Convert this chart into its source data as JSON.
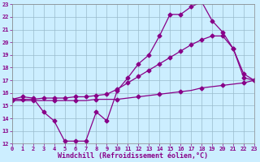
{
  "xlabel": "Windchill (Refroidissement éolien,°C)",
  "xlim": [
    0,
    23
  ],
  "ylim": [
    12,
    23
  ],
  "xticks": [
    0,
    1,
    2,
    3,
    4,
    5,
    6,
    7,
    8,
    9,
    10,
    11,
    12,
    13,
    14,
    15,
    16,
    17,
    18,
    19,
    20,
    21,
    22,
    23
  ],
  "yticks": [
    12,
    13,
    14,
    15,
    16,
    17,
    18,
    19,
    20,
    21,
    22,
    23
  ],
  "line1_x": [
    0,
    1,
    2,
    3,
    4,
    5,
    6,
    7,
    8,
    9,
    10,
    11,
    12,
    13,
    14,
    15,
    16,
    17,
    18,
    19,
    20,
    21,
    22,
    23
  ],
  "line1_y": [
    15.5,
    15.7,
    15.6,
    14.5,
    13.8,
    12.2,
    12.2,
    12.2,
    14.5,
    13.8,
    16.2,
    17.2,
    18.3,
    19.0,
    20.5,
    22.2,
    22.2,
    22.8,
    23.2,
    21.7,
    20.8,
    19.5,
    17.2,
    17.0
  ],
  "line2_x": [
    0,
    1,
    2,
    3,
    4,
    5,
    6,
    7,
    8,
    9,
    10,
    11,
    12,
    13,
    14,
    15,
    16,
    17,
    18,
    19,
    20,
    21,
    22,
    23
  ],
  "line2_y": [
    15.5,
    15.5,
    15.5,
    15.6,
    15.6,
    15.6,
    15.7,
    15.7,
    15.8,
    15.9,
    16.3,
    16.8,
    17.3,
    17.8,
    18.3,
    18.8,
    19.3,
    19.8,
    20.2,
    20.5,
    20.5,
    19.5,
    17.5,
    17.0
  ],
  "line3_x": [
    0,
    1,
    2,
    3,
    4,
    5,
    6,
    7,
    8,
    9,
    10,
    11,
    12,
    13,
    14,
    15,
    16,
    17,
    18,
    19,
    20,
    21,
    22,
    23
  ],
  "line3_y": [
    15.4,
    15.4,
    15.4,
    15.4,
    15.4,
    15.4,
    15.4,
    15.4,
    15.5,
    15.5,
    15.5,
    15.6,
    15.7,
    15.8,
    15.9,
    16.0,
    16.1,
    16.2,
    16.4,
    16.5,
    16.6,
    16.7,
    16.8,
    17.0
  ],
  "line_color": "#880088",
  "bg_color": "#cceeff",
  "grid_color": "#99bbcc",
  "marker": "D",
  "markersize": 2.5,
  "linewidth": 0.9,
  "tick_fontsize": 5.0,
  "xlabel_fontsize": 6.0
}
